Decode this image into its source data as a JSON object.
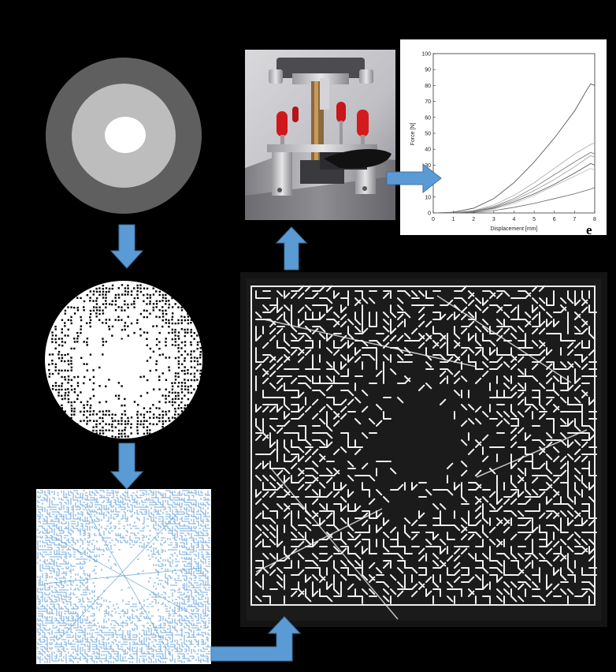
{
  "colors": {
    "background": "#000000",
    "arrow": "#5b9bd5",
    "arrow_stroke": "#41719c",
    "ring_outer": "#5f5f5f",
    "ring_middle": "#bdbdbd",
    "core": "#ffffff",
    "pattern_line": "#4a90d0",
    "fabric": "#141414",
    "stitch": "#f2f2f2"
  },
  "panel_e": {
    "letter": "e"
  },
  "chart_data": {
    "type": "line",
    "title": "",
    "xlabel": "Displacement [mm]",
    "ylabel": "Force [N]",
    "xlim": [
      0,
      8
    ],
    "ylim": [
      0,
      100
    ],
    "x_ticks": [
      "0",
      "1",
      "2",
      "3",
      "4",
      "5",
      "6",
      "7",
      "8"
    ],
    "y_ticks": [
      "0",
      "10",
      "20",
      "30",
      "40",
      "50",
      "60",
      "70",
      "80",
      "90",
      "100"
    ],
    "grid": false,
    "legend": "none",
    "series": [
      {
        "x": [
          0,
          1,
          2,
          3,
          4,
          5,
          6,
          7,
          7.6,
          7.8,
          8
        ],
        "y": [
          0,
          0.5,
          3,
          9,
          19,
          32,
          47,
          64,
          77,
          81,
          80
        ]
      },
      {
        "x": [
          0,
          1,
          2,
          3,
          4,
          5,
          6,
          7,
          7.8,
          8
        ],
        "y": [
          0,
          0.2,
          1.5,
          5,
          11,
          19,
          28,
          37,
          43,
          44
        ]
      },
      {
        "x": [
          0,
          1,
          2,
          3,
          4,
          5,
          6,
          7,
          7.8,
          8
        ],
        "y": [
          0,
          0.2,
          1.2,
          4,
          9,
          16,
          24,
          32,
          38,
          37
        ]
      },
      {
        "x": [
          0,
          1,
          2,
          3,
          4,
          5,
          6,
          7,
          7.8,
          8
        ],
        "y": [
          0,
          0.1,
          1,
          3.5,
          8,
          14,
          21,
          29,
          36,
          35
        ]
      },
      {
        "x": [
          0,
          1,
          2,
          3,
          4,
          5,
          6,
          7,
          7.8,
          8
        ],
        "y": [
          0,
          0.1,
          0.8,
          3,
          7,
          12,
          18,
          25,
          31,
          30
        ]
      },
      {
        "x": [
          0,
          1,
          2,
          3,
          4,
          5,
          6,
          7,
          7.8,
          8
        ],
        "y": [
          0,
          0.1,
          0.6,
          2.5,
          6,
          11,
          17,
          23,
          28,
          27
        ]
      },
      {
        "x": [
          0,
          1,
          2,
          3,
          4,
          5,
          6,
          7,
          7.8,
          8
        ],
        "y": [
          0,
          0.05,
          0.4,
          1.5,
          3.5,
          6,
          9,
          12,
          15,
          16
        ]
      }
    ]
  }
}
